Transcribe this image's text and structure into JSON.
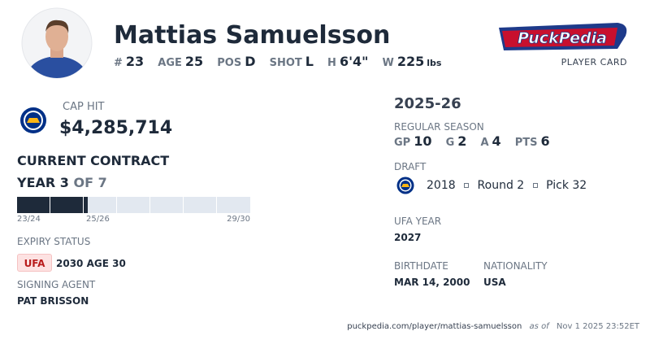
{
  "header": {
    "name": "Mattias Samuelsson",
    "stats": [
      {
        "label": "#",
        "value": "23"
      },
      {
        "label": "AGE",
        "value": "25"
      },
      {
        "label": "POS",
        "value": "D"
      },
      {
        "label": "SHOT",
        "value": "L"
      },
      {
        "label": "H",
        "value": "6'4\""
      },
      {
        "label": "W",
        "value": "225"
      }
    ],
    "weight_unit": "lbs",
    "brand": "PuckPedia",
    "brand_subtitle": "PLAYER CARD"
  },
  "contract": {
    "cap_hit_label": "CAP HIT",
    "cap_hit": "$4,285,714",
    "heading": "CURRENT CONTRACT",
    "year": "YEAR 3",
    "of": "OF 7",
    "bar_labels": [
      "23/24",
      "25/26",
      "29/30"
    ],
    "expiry_label": "EXPIRY STATUS",
    "expiry_status": "UFA",
    "expiry_detail": "2030 AGE 30",
    "agent_label": "SIGNING AGENT",
    "agent": "PAT BRISSON"
  },
  "season": {
    "title": "2025-26",
    "label": "REGULAR SEASON",
    "stats": [
      {
        "label": "GP",
        "value": "10"
      },
      {
        "label": "G",
        "value": "2"
      },
      {
        "label": "A",
        "value": "4"
      },
      {
        "label": "PTS",
        "value": "6"
      }
    ]
  },
  "draft": {
    "label": "DRAFT",
    "year": "2018",
    "round": "Round 2",
    "pick": "Pick 32"
  },
  "ufa": {
    "label": "UFA YEAR",
    "year": "2027"
  },
  "bio": {
    "birthdate_label": "BIRTHDATE",
    "birthdate": "MAR 14, 2000",
    "nationality_label": "NATIONALITY",
    "nationality": "USA"
  },
  "footer": {
    "url": "puckpedia.com/player/mattias-samuelsson",
    "as_of": "as of",
    "timestamp": "Nov 1 2025 23:52ET"
  }
}
